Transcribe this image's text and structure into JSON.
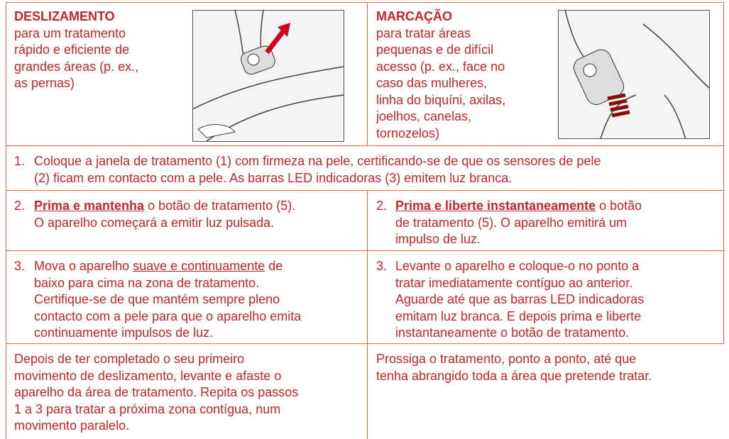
{
  "intro": [
    {
      "title": "DESLIZAMENTO",
      "lines": [
        "para um tratamento",
        "rápido e eficiente de",
        "grandes áreas (p. ex.,",
        "as pernas)"
      ]
    },
    {
      "title": "MARCAÇÃO",
      "lines": [
        "para tratar áreas",
        "pequenas e de difícil",
        "acesso (p. ex., face no",
        "caso das mulheres,",
        "linha do biquíni, axilas,",
        "joelhos, canelas,",
        "tornozelos)"
      ]
    }
  ],
  "step1": {
    "number": "1.",
    "lines": [
      "Coloque a janela de tratamento (1) com firmeza na pele, certificando-se de que os sensores de pele",
      "(2) ficam em contacto com a pele. As barras LED indicadoras (3) emitem luz branca."
    ]
  },
  "step2": [
    {
      "number": "2.",
      "emphasis": "Prima e mantenha",
      "after": "o botão de tratamento (5).",
      "lines": [
        "O aparelho começará a emitir luz pulsada."
      ]
    },
    {
      "number": "2.",
      "emphasis": "Prima e liberte instantaneamente",
      "after": "o botão",
      "lines": [
        "de tratamento (5). O aparelho emitirá um",
        "impulso de luz."
      ]
    }
  ],
  "step3": [
    {
      "number": "3.",
      "before": "Mova o aparelho",
      "underlined": "suave e continuamente",
      "after": "de",
      "lines": [
        "baixo para cima na zona de tratamento.",
        "Certifique-se de que mantém sempre pleno",
        "contacto com a pele para que o aparelho emita",
        "continuamente impulsos de luz."
      ]
    },
    {
      "number": "3.",
      "lines": [
        "Levante o aparelho e coloque-o no ponto a",
        "tratar imediatamente contíguo ao anterior.",
        "Aguarde até que as barras LED indicadoras",
        "emitam luz branca. E depois prima e liberte",
        "instantaneamente o botão de tratamento."
      ]
    }
  ],
  "closing": [
    {
      "lines": [
        "Depois de ter completado o seu primeiro",
        "movimento de deslizamento, levante e afaste o",
        "aparelho da área de tratamento. Repita os passos",
        "1 a 3 para tratar a próxima zona contígua, num",
        "movimento paralelo."
      ]
    },
    {
      "lines": [
        "Prossiga o tratamento, ponto a ponto, até que",
        "tenha abrangido toda a área que pretende tratar."
      ]
    }
  ]
}
